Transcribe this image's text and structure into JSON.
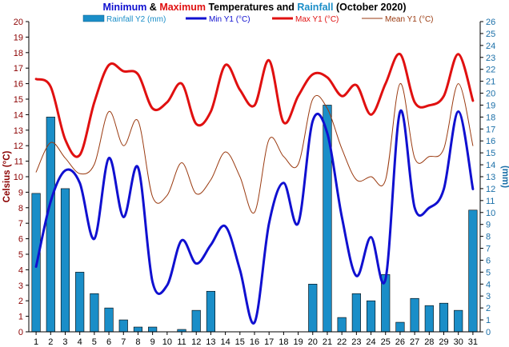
{
  "chart_data": {
    "type": "bar+line",
    "title_parts": [
      {
        "text": "Minimum",
        "color": "#1010d0"
      },
      {
        "text": " & ",
        "color": "#000000"
      },
      {
        "text": "Maximum",
        "color": "#e01010"
      },
      {
        "text": " Temperatures and ",
        "color": "#000000"
      },
      {
        "text": "Rainfall",
        "color": "#1a8ec8"
      },
      {
        "text": " (October 2020)",
        "color": "#000000"
      }
    ],
    "ylabel_left": "Celsius (°C)",
    "ylabel_right": "(mm)",
    "ylim_left": [
      0,
      20
    ],
    "ylim_right": [
      0,
      26
    ],
    "x": [
      1,
      2,
      3,
      4,
      5,
      6,
      7,
      8,
      9,
      10,
      11,
      12,
      13,
      14,
      15,
      16,
      17,
      18,
      19,
      20,
      21,
      22,
      23,
      24,
      25,
      26,
      27,
      28,
      29,
      30,
      31
    ],
    "series": [
      {
        "name": "Rainfall Y2 (mm)",
        "kind": "bar",
        "axis": "right",
        "color": "#1a8ec8",
        "values": [
          11.6,
          18.0,
          12.0,
          5.0,
          3.2,
          2.0,
          1.0,
          0.4,
          0.4,
          0.0,
          0.2,
          1.8,
          3.4,
          0,
          0,
          0,
          0,
          0,
          0,
          4.0,
          19.0,
          1.2,
          3.2,
          2.6,
          4.8,
          0.8,
          2.8,
          2.2,
          2.4,
          1.8,
          10.2
        ]
      },
      {
        "name": "Min Y1 (°C)",
        "kind": "line",
        "axis": "left",
        "color": "#1010d0",
        "width": 3,
        "values": [
          4.2,
          8.4,
          10.4,
          9.6,
          6.0,
          11.2,
          7.4,
          10.6,
          3.2,
          3.0,
          5.9,
          4.4,
          5.6,
          6.8,
          4.0,
          0.6,
          7.0,
          9.6,
          7.0,
          13.6,
          12.8,
          7.4,
          3.6,
          6.1,
          3.4,
          14.2,
          8.0,
          8.0,
          9.2,
          14.2,
          9.2
        ]
      },
      {
        "name": "Max Y1 (°C)",
        "kind": "line",
        "axis": "left",
        "color": "#e01010",
        "width": 3,
        "values": [
          16.3,
          15.8,
          12.4,
          11.4,
          14.8,
          17.2,
          16.8,
          16.6,
          14.4,
          14.8,
          16.0,
          13.4,
          14.2,
          17.2,
          15.6,
          14.6,
          17.5,
          13.5,
          15.2,
          16.6,
          16.4,
          15.2,
          15.9,
          14.0,
          16.0,
          17.9,
          14.8,
          14.6,
          15.2,
          17.9,
          14.9
        ]
      },
      {
        "name": "Mean Y1 (°C)",
        "kind": "line",
        "axis": "left",
        "color": "#9a3a10",
        "width": 1,
        "values": [
          10.3,
          12.2,
          11.2,
          10.2,
          10.8,
          14.2,
          12.0,
          13.6,
          8.7,
          8.8,
          10.9,
          8.9,
          9.8,
          11.6,
          10.0,
          7.7,
          12.4,
          11.3,
          10.8,
          15.0,
          14.4,
          11.8,
          9.8,
          10.0,
          9.8,
          16.0,
          11.2,
          11.3,
          11.8,
          16.0,
          12.0
        ]
      }
    ],
    "grid": false,
    "legend_position": "top"
  }
}
